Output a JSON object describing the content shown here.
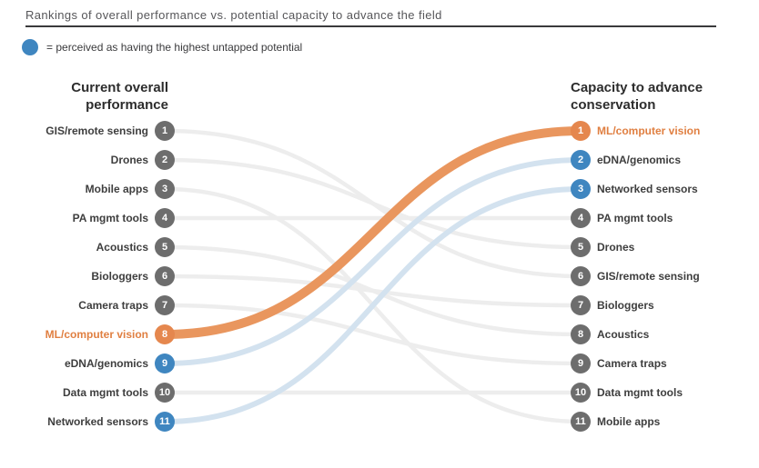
{
  "title": "Rankings of overall performance vs. potential capacity to advance the field",
  "legend": {
    "text": "= perceived as having the highest untapped potential",
    "dot_meaning": "highest-untapped-potential"
  },
  "columns": {
    "left": {
      "header_line1": "Current overall",
      "header_line2": "performance"
    },
    "right": {
      "header_line1": "Capacity to advance",
      "header_line2": "conservation"
    }
  },
  "colors": {
    "orange_badge": "#e5874e",
    "orange_line": "#e9965e",
    "orange_text": "#e07f41",
    "blue_badge": "#3f86c0",
    "blue_line": "#d3e2ef",
    "gray_badge": "#6d6d6d",
    "gray_line": "#ededed",
    "label_text": "#3e3e3e",
    "badge_number": "#ffffff"
  },
  "chart_data": {
    "type": "bump",
    "title": "Rankings of overall performance vs. potential capacity to advance the field",
    "left_axis_label": "Current overall performance",
    "right_axis_label": "Capacity to advance conservation",
    "rank_range": [
      1,
      11
    ],
    "legend_position": "top-left",
    "items": [
      {
        "label": "GIS/remote sensing",
        "performance_rank": 1,
        "capacity_rank": 6,
        "highlight": "none"
      },
      {
        "label": "Drones",
        "performance_rank": 2,
        "capacity_rank": 5,
        "highlight": "none"
      },
      {
        "label": "Mobile apps",
        "performance_rank": 3,
        "capacity_rank": 11,
        "highlight": "none"
      },
      {
        "label": "PA mgmt tools",
        "performance_rank": 4,
        "capacity_rank": 4,
        "highlight": "none"
      },
      {
        "label": "Acoustics",
        "performance_rank": 5,
        "capacity_rank": 8,
        "highlight": "none"
      },
      {
        "label": "Biologgers",
        "performance_rank": 6,
        "capacity_rank": 7,
        "highlight": "none"
      },
      {
        "label": "Camera traps",
        "performance_rank": 7,
        "capacity_rank": 9,
        "highlight": "none"
      },
      {
        "label": "ML/computer vision",
        "performance_rank": 8,
        "capacity_rank": 1,
        "highlight": "orange"
      },
      {
        "label": "eDNA/genomics",
        "performance_rank": 9,
        "capacity_rank": 2,
        "highlight": "blue"
      },
      {
        "label": "Data mgmt tools",
        "performance_rank": 10,
        "capacity_rank": 10,
        "highlight": "none"
      },
      {
        "label": "Networked sensors",
        "performance_rank": 11,
        "capacity_rank": 3,
        "highlight": "blue"
      }
    ]
  }
}
